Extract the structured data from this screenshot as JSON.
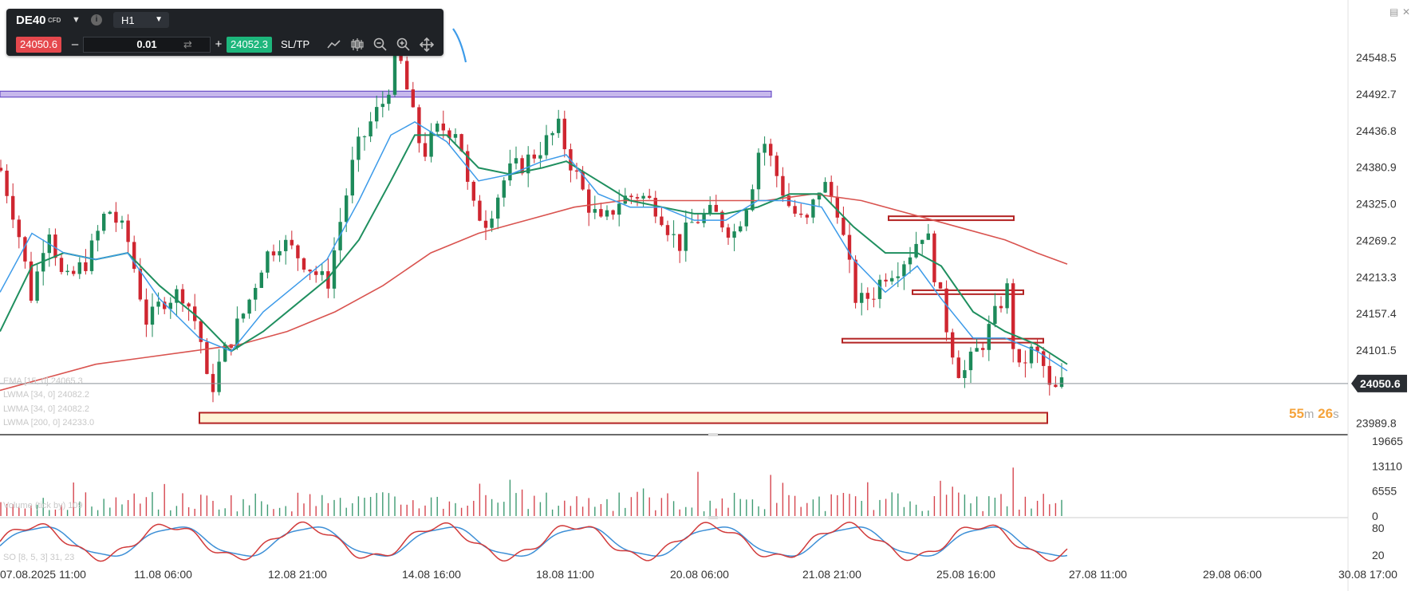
{
  "toolbar": {
    "symbol": "DE40",
    "symbol_tag": "CFD",
    "timeframe": "H1",
    "bid_price": "24050.6",
    "volume": "0.01",
    "ask_price": "24052.3",
    "sltp_label": "SL/TP",
    "icons": [
      "info-icon",
      "line-chart-icon",
      "candlestick-icon",
      "zoom-out-icon",
      "zoom-in-icon",
      "move-icon"
    ]
  },
  "price_axis": {
    "ticks": [
      "24548.5",
      "24492.7",
      "24436.8",
      "24380.9",
      "24325.0",
      "24269.2",
      "24213.3",
      "24157.4",
      "24101.5",
      "23989.8"
    ],
    "current_price": "24050.6"
  },
  "volume_axis": {
    "ticks": [
      "19665",
      "13110",
      "6555",
      "0"
    ]
  },
  "oscillator_axis": {
    "ticks": [
      "80",
      "20"
    ]
  },
  "time_axis": {
    "labels": [
      "07.08.2025 11:00",
      "11.08 06:00",
      "12.08 21:00",
      "14.08 16:00",
      "18.08 11:00",
      "20.08 06:00",
      "21.08 21:00",
      "25.08 16:00",
      "27.08 11:00",
      "29.08 06:00",
      "30.08 17:00"
    ]
  },
  "countdown": {
    "minutes": "55",
    "minutes_unit": "m",
    "seconds": "26",
    "seconds_unit": "s"
  },
  "indicators": [
    "EMA [15, 0] 24065.3",
    "LWMA [34, 0] 24082.2",
    "LWMA [34, 0] 24082.2",
    "LWMA [200, 0] 24233.0"
  ],
  "volume_legend": "Volume (tick by) 109",
  "oscillator_legend": "SO [8, 5, 3] 31, 23",
  "colors": {
    "bull": "#1d8a5a",
    "bear": "#cf2630",
    "ema": "#3d9be9",
    "lwma34": "#1f8f5f",
    "lwma200": "#d9534f",
    "zone_fill": "#fff4d6",
    "zone_border": "#b32323",
    "resistance_fill": "#c7b8ec",
    "resistance_border": "#6a4fc7",
    "countdown": "#f5a33b"
  },
  "chart_data": {
    "type": "candlestick",
    "symbol": "DE40",
    "timeframe": "H1",
    "x_labels": [
      "07.08.2025 11:00",
      "11.08 06:00",
      "12.08 21:00",
      "14.08 16:00",
      "18.08 11:00",
      "20.08 06:00",
      "21.08 21:00",
      "25.08 16:00",
      "27.08 11:00",
      "29.08 06:00",
      "30.08 17:00"
    ],
    "ylim": [
      23970,
      24590
    ],
    "close_path": [
      [
        0,
        24380
      ],
      [
        20,
        24300
      ],
      [
        40,
        24180
      ],
      [
        60,
        24300
      ],
      [
        80,
        24200
      ],
      [
        110,
        24240
      ],
      [
        135,
        24320
      ],
      [
        160,
        24270
      ],
      [
        185,
        24140
      ],
      [
        205,
        24180
      ],
      [
        230,
        24190
      ],
      [
        250,
        24130
      ],
      [
        262,
        24030
      ],
      [
        275,
        24080
      ],
      [
        290,
        24120
      ],
      [
        310,
        24170
      ],
      [
        330,
        24240
      ],
      [
        350,
        24270
      ],
      [
        380,
        24240
      ],
      [
        410,
        24200
      ],
      [
        425,
        24290
      ],
      [
        445,
        24400
      ],
      [
        465,
        24450
      ],
      [
        485,
        24490
      ],
      [
        495,
        24560
      ],
      [
        505,
        24530
      ],
      [
        515,
        24470
      ],
      [
        530,
        24400
      ],
      [
        550,
        24440
      ],
      [
        575,
        24440
      ],
      [
        590,
        24320
      ],
      [
        610,
        24300
      ],
      [
        635,
        24370
      ],
      [
        660,
        24390
      ],
      [
        685,
        24420
      ],
      [
        700,
        24440
      ],
      [
        715,
        24390
      ],
      [
        735,
        24330
      ],
      [
        755,
        24290
      ],
      [
        775,
        24330
      ],
      [
        800,
        24340
      ],
      [
        825,
        24320
      ],
      [
        850,
        24260
      ],
      [
        870,
        24300
      ],
      [
        895,
        24310
      ],
      [
        920,
        24280
      ],
      [
        940,
        24340
      ],
      [
        955,
        24430
      ],
      [
        970,
        24380
      ],
      [
        990,
        24320
      ],
      [
        1010,
        24290
      ],
      [
        1030,
        24360
      ],
      [
        1050,
        24320
      ],
      [
        1062,
        24240
      ],
      [
        1075,
        24170
      ],
      [
        1095,
        24190
      ],
      [
        1110,
        24220
      ],
      [
        1125,
        24230
      ],
      [
        1140,
        24250
      ],
      [
        1160,
        24290
      ],
      [
        1175,
        24200
      ],
      [
        1190,
        24120
      ],
      [
        1205,
        24060
      ],
      [
        1220,
        24090
      ],
      [
        1235,
        24120
      ],
      [
        1250,
        24160
      ],
      [
        1262,
        24200
      ],
      [
        1275,
        24060
      ],
      [
        1290,
        24100
      ],
      [
        1305,
        24090
      ],
      [
        1318,
        24030
      ],
      [
        1330,
        24050
      ],
      [
        1338,
        24052
      ]
    ],
    "ema_15_path": [
      [
        0,
        24190
      ],
      [
        40,
        24280
      ],
      [
        80,
        24250
      ],
      [
        120,
        24240
      ],
      [
        160,
        24250
      ],
      [
        200,
        24180
      ],
      [
        250,
        24120
      ],
      [
        290,
        24100
      ],
      [
        330,
        24160
      ],
      [
        370,
        24200
      ],
      [
        410,
        24240
      ],
      [
        450,
        24330
      ],
      [
        490,
        24430
      ],
      [
        520,
        24450
      ],
      [
        560,
        24420
      ],
      [
        600,
        24360
      ],
      [
        640,
        24370
      ],
      [
        680,
        24390
      ],
      [
        710,
        24400
      ],
      [
        750,
        24340
      ],
      [
        790,
        24320
      ],
      [
        830,
        24320
      ],
      [
        870,
        24300
      ],
      [
        910,
        24300
      ],
      [
        950,
        24330
      ],
      [
        990,
        24330
      ],
      [
        1030,
        24320
      ],
      [
        1070,
        24240
      ],
      [
        1110,
        24190
      ],
      [
        1150,
        24230
      ],
      [
        1180,
        24180
      ],
      [
        1220,
        24120
      ],
      [
        1260,
        24120
      ],
      [
        1300,
        24100
      ],
      [
        1338,
        24070
      ]
    ],
    "lwma_34_path": [
      [
        0,
        24130
      ],
      [
        40,
        24230
      ],
      [
        80,
        24250
      ],
      [
        120,
        24240
      ],
      [
        160,
        24250
      ],
      [
        200,
        24200
      ],
      [
        250,
        24150
      ],
      [
        290,
        24100
      ],
      [
        330,
        24130
      ],
      [
        370,
        24170
      ],
      [
        410,
        24210
      ],
      [
        450,
        24270
      ],
      [
        490,
        24360
      ],
      [
        520,
        24430
      ],
      [
        560,
        24430
      ],
      [
        600,
        24380
      ],
      [
        640,
        24370
      ],
      [
        680,
        24380
      ],
      [
        710,
        24390
      ],
      [
        750,
        24360
      ],
      [
        790,
        24330
      ],
      [
        830,
        24320
      ],
      [
        870,
        24310
      ],
      [
        910,
        24310
      ],
      [
        950,
        24320
      ],
      [
        990,
        24340
      ],
      [
        1030,
        24340
      ],
      [
        1070,
        24290
      ],
      [
        1110,
        24250
      ],
      [
        1150,
        24250
      ],
      [
        1180,
        24230
      ],
      [
        1220,
        24160
      ],
      [
        1260,
        24130
      ],
      [
        1300,
        24110
      ],
      [
        1338,
        24080
      ]
    ],
    "lwma_200_path": [
      [
        0,
        24040
      ],
      [
        60,
        24060
      ],
      [
        120,
        24080
      ],
      [
        180,
        24090
      ],
      [
        240,
        24100
      ],
      [
        300,
        24110
      ],
      [
        360,
        24130
      ],
      [
        420,
        24160
      ],
      [
        480,
        24200
      ],
      [
        540,
        24250
      ],
      [
        600,
        24280
      ],
      [
        660,
        24300
      ],
      [
        720,
        24320
      ],
      [
        780,
        24330
      ],
      [
        840,
        24330
      ],
      [
        900,
        24330
      ],
      [
        960,
        24330
      ],
      [
        1020,
        24340
      ],
      [
        1080,
        24330
      ],
      [
        1140,
        24310
      ],
      [
        1200,
        24290
      ],
      [
        1260,
        24270
      ],
      [
        1300,
        24250
      ],
      [
        1338,
        24233
      ]
    ],
    "zones": [
      {
        "kind": "resistance",
        "x0": 0,
        "x1": 967,
        "y0": 24488,
        "y1": 24497
      },
      {
        "kind": "support",
        "x0": 250,
        "x1": 1313,
        "y0": 23990,
        "y1": 24006
      },
      {
        "kind": "box",
        "x0": 1114,
        "x1": 1271,
        "y0": 24300,
        "y1": 24306
      },
      {
        "kind": "box",
        "x0": 1144,
        "x1": 1283,
        "y0": 24187,
        "y1": 24193
      },
      {
        "kind": "box",
        "x0": 1056,
        "x1": 1308,
        "y0": 24113,
        "y1": 24119
      },
      {
        "kind": "box",
        "x0": 488,
        "x1": 520,
        "y0": 24567,
        "y1": 24573
      }
    ],
    "volume_range": [
      0,
      19665
    ],
    "oscillator_range": [
      0,
      100
    ],
    "current_price": 24050.6
  }
}
